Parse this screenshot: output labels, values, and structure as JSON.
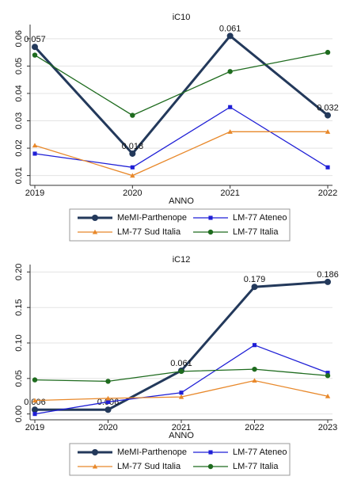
{
  "chart_data": [
    {
      "type": "line",
      "title": "iC10",
      "xlabel": "ANNO",
      "x": [
        2019,
        2020,
        2021,
        2022
      ],
      "xlim": [
        2019,
        2022
      ],
      "xticks": [
        2019,
        2020,
        2021,
        2022
      ],
      "ylim": [
        0.007,
        0.064
      ],
      "yticks": [
        0.01,
        0.02,
        0.03,
        0.04,
        0.05,
        0.06
      ],
      "grid": true,
      "series": [
        {
          "name": "MeMI-Parthenope",
          "color": "#23395b",
          "marker": "circle",
          "width": 3,
          "labels": true,
          "values": [
            0.057,
            0.018,
            0.061,
            0.032
          ]
        },
        {
          "name": "LM-77 Ateneo",
          "color": "#1f1fd6",
          "marker": "square",
          "width": 1.3,
          "values": [
            0.018,
            0.013,
            0.035,
            0.013
          ]
        },
        {
          "name": "LM-77 Sud Italia",
          "color": "#e8882a",
          "marker": "triangle",
          "width": 1.3,
          "values": [
            0.021,
            0.01,
            0.026,
            0.026
          ]
        },
        {
          "name": "LM-77 Italia",
          "color": "#1e6b1e",
          "marker": "circle",
          "width": 1.3,
          "values": [
            0.054,
            0.032,
            0.048,
            0.055
          ]
        }
      ]
    },
    {
      "type": "line",
      "title": "iC12",
      "xlabel": "ANNO",
      "x": [
        2019,
        2020,
        2021,
        2022,
        2023
      ],
      "xlim": [
        2019,
        2023
      ],
      "xticks": [
        2019,
        2020,
        2021,
        2022,
        2023
      ],
      "ylim": [
        -0.006,
        0.206
      ],
      "yticks": [
        {
          "value": 0,
          "label": "0.00"
        },
        0.05,
        {
          "value": 0.1,
          "label": "0.10"
        },
        0.15,
        {
          "value": 0.2,
          "label": "0.20"
        }
      ],
      "grid": true,
      "series": [
        {
          "name": "MeMI-Parthenope",
          "color": "#23395b",
          "marker": "circle",
          "width": 3,
          "labels": true,
          "values": [
            0.006,
            0.006,
            0.061,
            0.179,
            0.186
          ]
        },
        {
          "name": "LM-77 Ateneo",
          "color": "#1f1fd6",
          "marker": "square",
          "width": 1.3,
          "values": [
            0.0,
            0.017,
            0.03,
            0.097,
            0.058
          ]
        },
        {
          "name": "LM-77 Sud Italia",
          "color": "#e8882a",
          "marker": "triangle",
          "width": 1.3,
          "values": [
            0.019,
            0.022,
            0.024,
            0.047,
            0.025
          ]
        },
        {
          "name": "LM-77 Italia",
          "color": "#1e6b1e",
          "marker": "circle",
          "width": 1.3,
          "values": [
            0.048,
            0.046,
            0.06,
            0.063,
            0.054
          ]
        }
      ]
    }
  ]
}
